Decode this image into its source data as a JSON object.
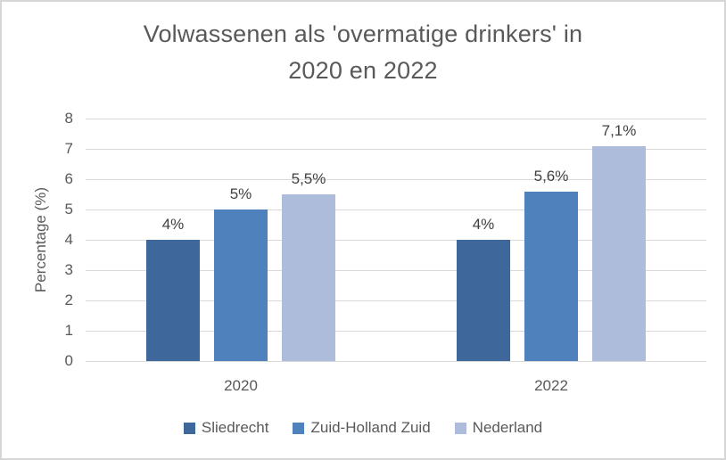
{
  "chart_data": {
    "type": "bar",
    "title": "Volwassenen als 'overmatige drinkers' in 2020 en 2022",
    "title_lines": [
      "Volwassenen als 'overmatige drinkers' in",
      "2020 en 2022"
    ],
    "xlabel": "",
    "ylabel": "Percentage (%)",
    "categories": [
      "2020",
      "2022"
    ],
    "series": [
      {
        "name": "Sliedrecht",
        "color": "#3E689B",
        "values": [
          4,
          4
        ],
        "data_labels": [
          "4%",
          "4%"
        ]
      },
      {
        "name": "Zuid-Holland Zuid",
        "color": "#4F81BD",
        "values": [
          5,
          5.6
        ],
        "data_labels": [
          "5%",
          "5,6%"
        ]
      },
      {
        "name": "Nederland",
        "color": "#ADBCDB",
        "values": [
          5.5,
          7.1
        ],
        "data_labels": [
          "5,5%",
          "7,1%"
        ]
      }
    ],
    "ylim": [
      0,
      8
    ],
    "y_ticks": [
      0,
      1,
      2,
      3,
      4,
      5,
      6,
      7,
      8
    ],
    "grid": true,
    "legend_position": "bottom"
  },
  "styles": {
    "text_color": "#595959",
    "data_label_color": "#404040",
    "gridline_color": "#d9d9d9",
    "border_color": "#d6d6d6",
    "background": "#ffffff"
  }
}
